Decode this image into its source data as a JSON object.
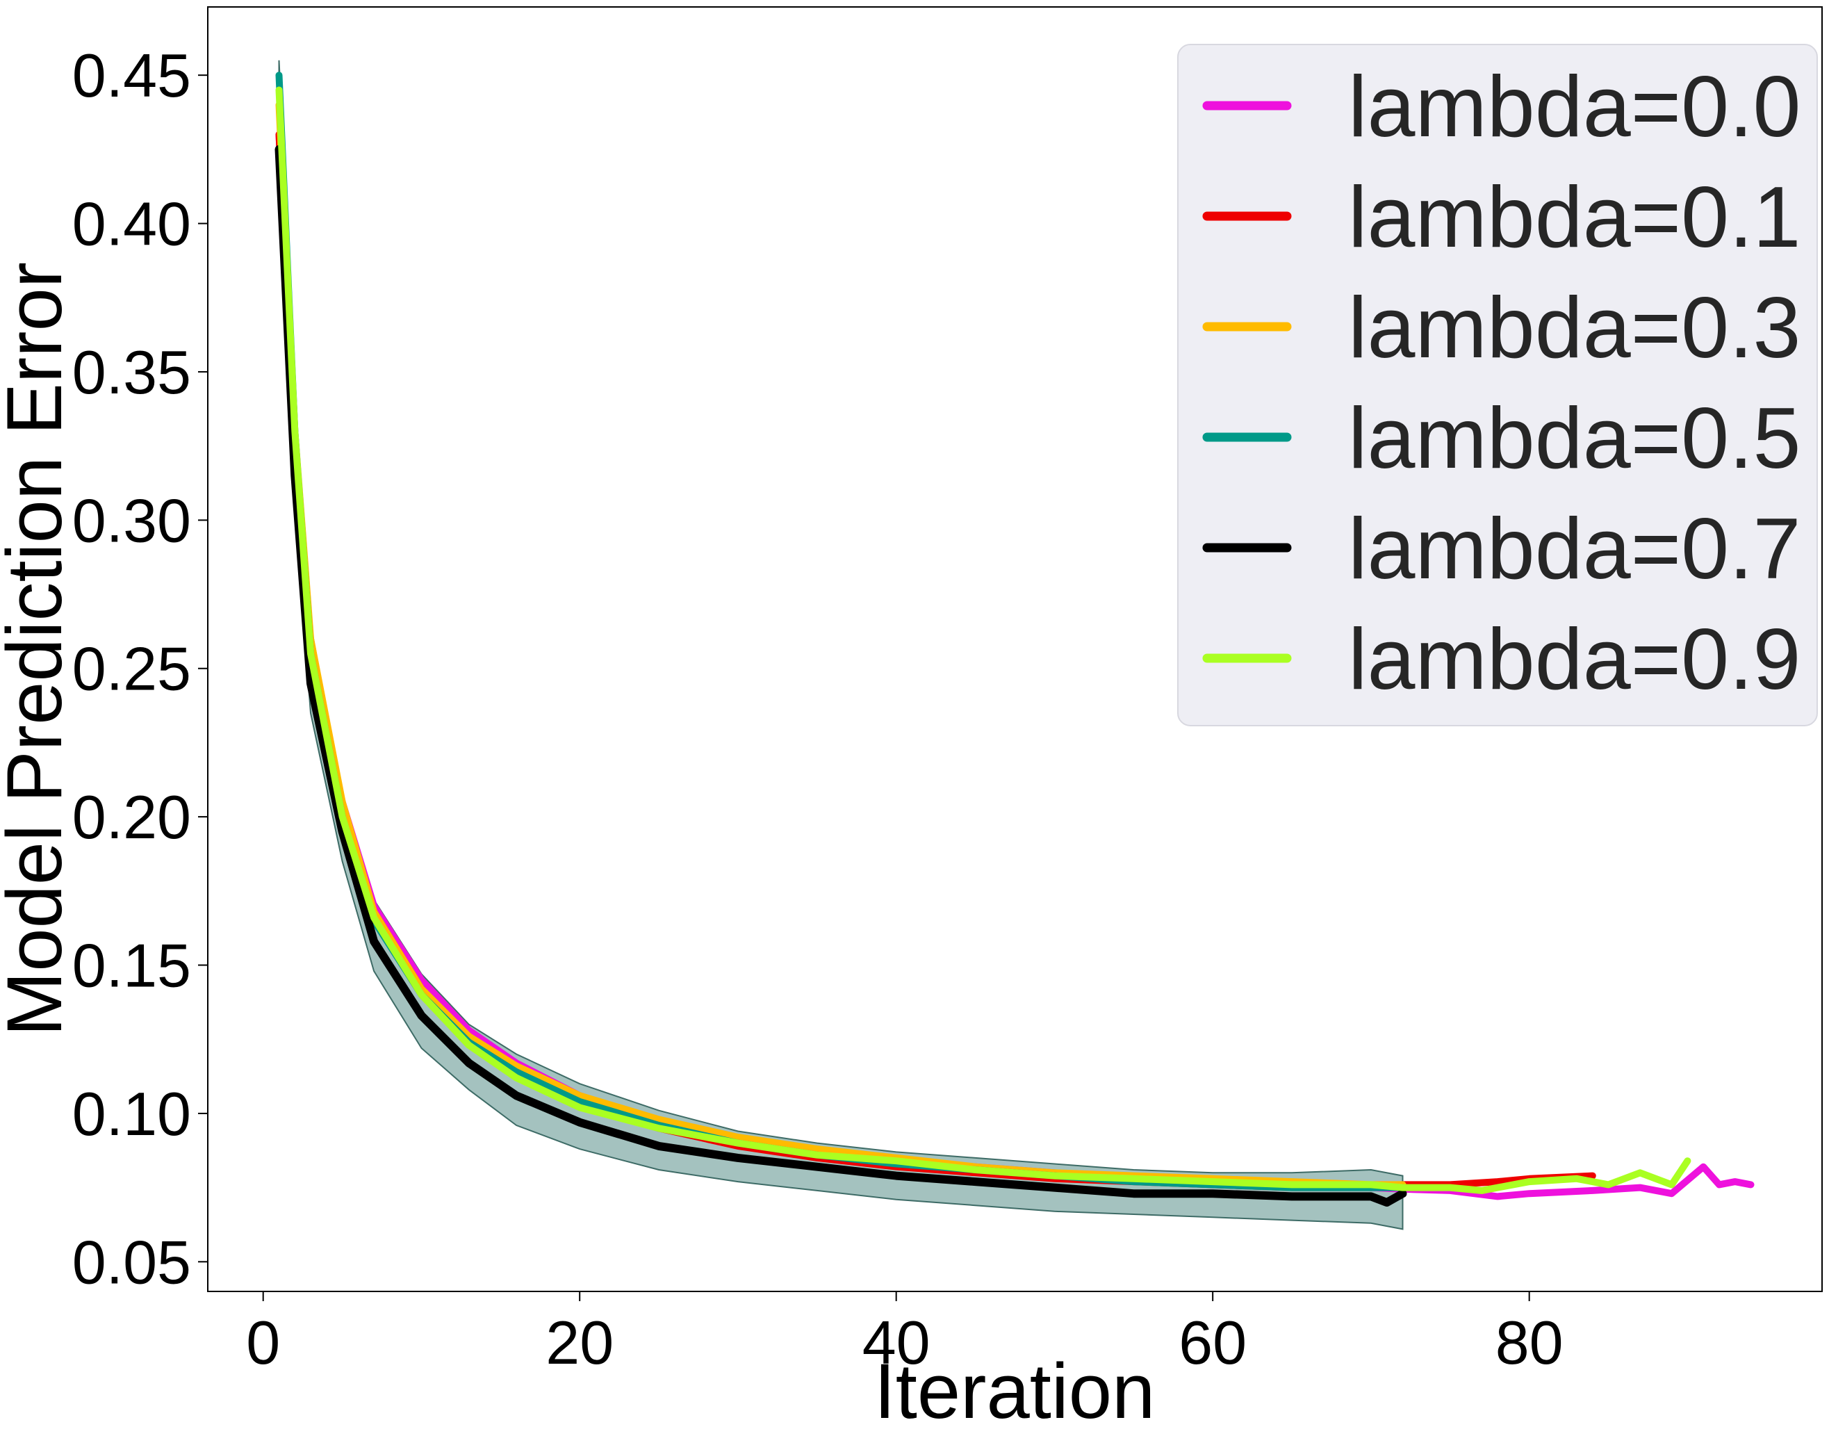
{
  "chart_data": {
    "type": "line",
    "title": "",
    "xlabel": "Iteration",
    "ylabel": "Model Prediction Error",
    "xlim": [
      -3.5,
      98.5
    ],
    "ylim": [
      0.04,
      0.473
    ],
    "xticks": [
      0,
      20,
      40,
      60,
      80
    ],
    "yticks": [
      0.05,
      0.1,
      0.15,
      0.2,
      0.25,
      0.3,
      0.35,
      0.4,
      0.45
    ],
    "ytick_labels": [
      "0.05",
      "0.10",
      "0.15",
      "0.20",
      "0.25",
      "0.30",
      "0.35",
      "0.40",
      "0.45"
    ],
    "xtick_labels": [
      "0",
      "20",
      "40",
      "60",
      "80"
    ],
    "grid": false,
    "legend_position": "top-right",
    "legend_bg": "#eeeef4",
    "series": [
      {
        "name": "lambda=0.0",
        "color": "#ee11dd",
        "label": "lambda=0.0",
        "x": [
          1,
          2,
          3,
          5,
          7,
          10,
          13,
          16,
          20,
          25,
          30,
          35,
          40,
          45,
          50,
          55,
          60,
          65,
          70,
          72,
          75,
          78,
          80,
          84,
          87,
          89,
          91,
          92,
          93,
          94
        ],
        "y": [
          0.43,
          0.32,
          0.25,
          0.205,
          0.17,
          0.145,
          0.128,
          0.117,
          0.106,
          0.097,
          0.091,
          0.087,
          0.084,
          0.082,
          0.08,
          0.078,
          0.077,
          0.076,
          0.075,
          0.0745,
          0.074,
          0.072,
          0.073,
          0.074,
          0.075,
          0.073,
          0.082,
          0.076,
          0.077,
          0.076
        ]
      },
      {
        "name": "lambda=0.1",
        "color": "#ee0000",
        "label": "lambda=0.1",
        "x": [
          1,
          2,
          3,
          5,
          7,
          10,
          13,
          16,
          20,
          25,
          30,
          35,
          40,
          45,
          50,
          55,
          60,
          65,
          70,
          72,
          75,
          78,
          80,
          84
        ],
        "y": [
          0.43,
          0.32,
          0.25,
          0.203,
          0.168,
          0.142,
          0.125,
          0.114,
          0.103,
          0.095,
          0.089,
          0.085,
          0.082,
          0.08,
          0.078,
          0.077,
          0.076,
          0.075,
          0.075,
          0.076,
          0.076,
          0.077,
          0.078,
          0.079
        ]
      },
      {
        "name": "lambda=0.3",
        "color": "#ffbb00",
        "label": "lambda=0.3",
        "x": [
          1,
          2,
          3,
          5,
          7,
          10,
          13,
          16,
          20,
          25,
          30,
          35,
          40,
          45,
          50,
          55,
          60,
          65,
          70,
          72
        ],
        "y": [
          0.44,
          0.33,
          0.26,
          0.205,
          0.168,
          0.142,
          0.126,
          0.116,
          0.106,
          0.098,
          0.092,
          0.088,
          0.085,
          0.082,
          0.08,
          0.079,
          0.078,
          0.077,
          0.076,
          0.076
        ]
      },
      {
        "name": "lambda=0.5",
        "color": "#009988",
        "label": "lambda=0.5",
        "x": [
          1,
          2,
          3,
          5,
          7,
          10,
          13,
          16,
          20,
          25,
          30,
          35,
          40,
          45,
          50,
          55,
          60,
          65,
          70,
          72
        ],
        "y": [
          0.45,
          0.33,
          0.255,
          0.2,
          0.165,
          0.14,
          0.124,
          0.114,
          0.104,
          0.096,
          0.09,
          0.086,
          0.083,
          0.081,
          0.079,
          0.077,
          0.076,
          0.075,
          0.075,
          0.075
        ]
      },
      {
        "name": "lambda=0.7",
        "color": "#000000",
        "label": "lambda=0.7",
        "x": [
          1,
          2,
          3,
          5,
          7,
          10,
          13,
          16,
          20,
          25,
          30,
          35,
          40,
          45,
          50,
          55,
          60,
          65,
          70,
          71,
          72
        ],
        "y": [
          0.425,
          0.315,
          0.245,
          0.195,
          0.158,
          0.133,
          0.117,
          0.106,
          0.097,
          0.089,
          0.085,
          0.082,
          0.079,
          0.077,
          0.075,
          0.073,
          0.073,
          0.072,
          0.072,
          0.07,
          0.073
        ]
      },
      {
        "name": "lambda=0.9",
        "color": "#aaff22",
        "label": "lambda=0.9",
        "x": [
          1,
          2,
          3,
          5,
          7,
          10,
          13,
          16,
          20,
          25,
          30,
          35,
          40,
          45,
          50,
          55,
          60,
          65,
          70,
          72,
          75,
          77,
          80,
          83,
          85,
          87,
          89,
          90
        ],
        "y": [
          0.445,
          0.33,
          0.255,
          0.2,
          0.166,
          0.14,
          0.123,
          0.112,
          0.102,
          0.095,
          0.09,
          0.086,
          0.084,
          0.081,
          0.079,
          0.078,
          0.077,
          0.076,
          0.076,
          0.075,
          0.075,
          0.074,
          0.077,
          0.078,
          0.076,
          0.08,
          0.076,
          0.084
        ]
      }
    ],
    "band": {
      "name": "std-band",
      "color": "#5a8f8a",
      "x": [
        1,
        2,
        3,
        5,
        7,
        10,
        13,
        16,
        20,
        25,
        30,
        35,
        40,
        45,
        50,
        55,
        60,
        65,
        70,
        72
      ],
      "lower": [
        0.42,
        0.305,
        0.235,
        0.185,
        0.148,
        0.122,
        0.108,
        0.096,
        0.088,
        0.081,
        0.077,
        0.074,
        0.071,
        0.069,
        0.067,
        0.066,
        0.065,
        0.064,
        0.063,
        0.061
      ],
      "upper": [
        0.455,
        0.34,
        0.265,
        0.208,
        0.172,
        0.147,
        0.13,
        0.12,
        0.11,
        0.101,
        0.094,
        0.09,
        0.087,
        0.085,
        0.083,
        0.081,
        0.08,
        0.08,
        0.081,
        0.079
      ]
    }
  }
}
